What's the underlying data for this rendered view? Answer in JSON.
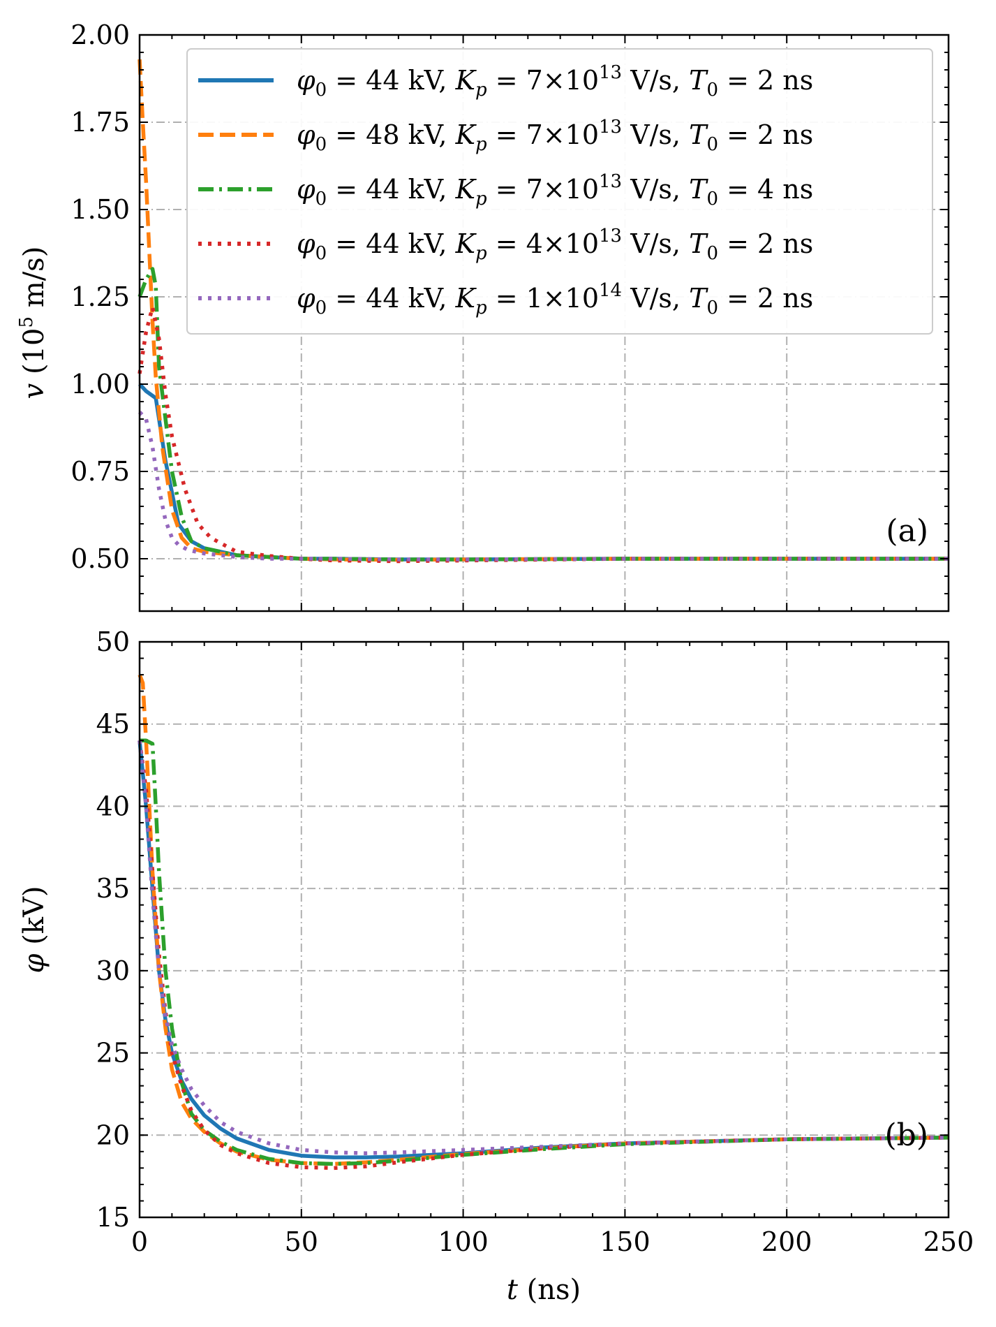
{
  "chart_data": [
    {
      "type": "line",
      "panel_label": "(a)",
      "ylabel_var": "v",
      "ylabel_unit_pre": "(10",
      "ylabel_unit_exp": "5",
      "ylabel_unit_post": " m/s)",
      "xlim": [
        0,
        250
      ],
      "ylim": [
        0.35,
        2.0
      ],
      "xticks": [
        0,
        50,
        100,
        150,
        200,
        250
      ],
      "xtick_labels": [
        "",
        "",
        "",
        "",
        "",
        ""
      ],
      "yticks": [
        0.5,
        0.75,
        1.0,
        1.25,
        1.5,
        1.75,
        2.0
      ],
      "ytick_labels": [
        "0.50",
        "0.75",
        "1.00",
        "1.25",
        "1.50",
        "1.75",
        "2.00"
      ],
      "grid": true,
      "legend": "top-right",
      "series": [
        {
          "name": "φ0 = 44 kV, Kp = 7×10^13 V/s, T0 = 2 ns",
          "x": [
            0,
            2,
            5,
            8,
            12,
            16,
            20,
            30,
            40,
            50,
            60,
            80,
            100,
            150,
            200,
            250
          ],
          "y": [
            1.0,
            0.98,
            0.96,
            0.78,
            0.6,
            0.55,
            0.53,
            0.51,
            0.505,
            0.5,
            0.5,
            0.498,
            0.498,
            0.5,
            0.5,
            0.5
          ]
        },
        {
          "name": "φ0 = 48 kV, Kp = 7×10^13 V/s, T0 = 2 ns",
          "x": [
            0,
            1,
            2,
            3,
            4,
            5,
            7,
            10,
            13,
            16,
            20,
            30,
            40,
            50,
            60,
            80,
            100,
            150,
            200,
            250
          ],
          "y": [
            1.93,
            1.75,
            1.58,
            1.38,
            1.18,
            1.02,
            0.82,
            0.64,
            0.56,
            0.53,
            0.52,
            0.51,
            0.505,
            0.5,
            0.498,
            0.497,
            0.498,
            0.5,
            0.5,
            0.5
          ]
        },
        {
          "name": "φ0 = 44 kV, Kp = 7×10^13 V/s, T0 = 4 ns",
          "x": [
            0,
            2,
            4,
            5,
            6,
            8,
            10,
            13,
            16,
            20,
            30,
            40,
            50,
            60,
            80,
            100,
            150,
            200,
            250
          ],
          "y": [
            1.25,
            1.3,
            1.33,
            1.28,
            1.05,
            0.9,
            0.75,
            0.62,
            0.55,
            0.53,
            0.51,
            0.505,
            0.5,
            0.5,
            0.498,
            0.498,
            0.5,
            0.5,
            0.5
          ]
        },
        {
          "name": "φ0 = 44 kV, Kp = 4×10^13 V/s, T0 = 2 ns",
          "x": [
            0,
            2,
            4,
            6,
            8,
            10,
            14,
            18,
            22,
            26,
            30,
            40,
            50,
            60,
            80,
            100,
            150,
            200,
            250
          ],
          "y": [
            1.03,
            1.15,
            1.22,
            1.13,
            0.97,
            0.85,
            0.7,
            0.6,
            0.56,
            0.54,
            0.52,
            0.508,
            0.5,
            0.495,
            0.493,
            0.495,
            0.5,
            0.5,
            0.5
          ]
        },
        {
          "name": "φ0 = 44 kV, Kp = 1×10^14 V/s, T0 = 2 ns",
          "x": [
            0,
            2,
            4,
            6,
            8,
            10,
            12,
            15,
            20,
            30,
            40,
            50,
            60,
            80,
            100,
            150,
            200,
            250
          ],
          "y": [
            0.92,
            0.9,
            0.82,
            0.7,
            0.61,
            0.56,
            0.54,
            0.525,
            0.515,
            0.505,
            0.5,
            0.5,
            0.5,
            0.498,
            0.498,
            0.5,
            0.5,
            0.5
          ]
        }
      ]
    },
    {
      "type": "line",
      "panel_label": "(b)",
      "ylabel_var": "φ",
      "ylabel_unit": "(kV)",
      "xlabel_var": "t",
      "xlabel_unit": "(ns)",
      "xlim": [
        0,
        250
      ],
      "ylim": [
        15,
        50
      ],
      "xticks": [
        0,
        50,
        100,
        150,
        200,
        250
      ],
      "xtick_labels": [
        "0",
        "50",
        "100",
        "150",
        "200",
        "250"
      ],
      "yticks": [
        15,
        20,
        25,
        30,
        35,
        40,
        45,
        50
      ],
      "ytick_labels": [
        "15",
        "20",
        "25",
        "30",
        "35",
        "40",
        "45",
        "50"
      ],
      "grid": true,
      "series": [
        {
          "name": "φ0 = 44 kV, Kp = 7×10^13 V/s, T0 = 2 ns",
          "x": [
            0,
            2,
            4,
            6,
            8,
            10,
            13,
            16,
            20,
            25,
            30,
            40,
            50,
            60,
            70,
            80,
            100,
            125,
            150,
            200,
            250
          ],
          "y": [
            44,
            40,
            35,
            30,
            27,
            25,
            23.3,
            22.2,
            21.2,
            20.4,
            19.8,
            19.1,
            18.75,
            18.65,
            18.65,
            18.7,
            18.9,
            19.25,
            19.5,
            19.75,
            19.85
          ]
        },
        {
          "name": "φ0 = 48 kV, Kp = 7×10^13 V/s, T0 = 2 ns",
          "x": [
            0,
            1,
            2,
            3,
            4,
            6,
            8,
            10,
            13,
            16,
            20,
            25,
            30,
            40,
            50,
            60,
            70,
            80,
            100,
            125,
            150,
            200,
            250
          ],
          "y": [
            48,
            47.5,
            44,
            40,
            36,
            30,
            26.5,
            24,
            22,
            21,
            20.2,
            19.5,
            19.0,
            18.5,
            18.3,
            18.25,
            18.35,
            18.5,
            18.85,
            19.2,
            19.5,
            19.75,
            19.85
          ]
        },
        {
          "name": "φ0 = 44 kV, Kp = 7×10^13 V/s, T0 = 4 ns",
          "x": [
            0,
            2,
            4,
            5,
            6,
            8,
            10,
            13,
            16,
            20,
            25,
            30,
            40,
            50,
            60,
            70,
            80,
            100,
            125,
            150,
            200,
            250
          ],
          "y": [
            44,
            44,
            43.8,
            40,
            36,
            30,
            26.5,
            23.2,
            21.3,
            20.3,
            19.6,
            19.1,
            18.55,
            18.3,
            18.25,
            18.3,
            18.45,
            18.8,
            19.15,
            19.45,
            19.75,
            19.85
          ]
        },
        {
          "name": "φ0 = 44 kV, Kp = 4×10^13 V/s, T0 = 2 ns",
          "x": [
            0,
            2,
            4,
            6,
            8,
            10,
            13,
            16,
            20,
            25,
            30,
            40,
            50,
            60,
            70,
            80,
            100,
            125,
            150,
            200,
            250
          ],
          "y": [
            44,
            41,
            36,
            31,
            27.5,
            25,
            23,
            21.5,
            20.3,
            19.4,
            18.9,
            18.3,
            18.05,
            18.0,
            18.1,
            18.35,
            18.8,
            19.2,
            19.5,
            19.75,
            19.85
          ]
        },
        {
          "name": "φ0 = 44 kV, Kp = 1×10^14 V/s, T0 = 2 ns",
          "x": [
            0,
            2,
            4,
            6,
            8,
            10,
            13,
            16,
            20,
            25,
            30,
            40,
            50,
            60,
            70,
            80,
            100,
            125,
            150,
            200,
            250
          ],
          "y": [
            44,
            40,
            34.5,
            30,
            27.2,
            25.5,
            24,
            22.8,
            21.8,
            20.8,
            20.2,
            19.5,
            19.1,
            18.95,
            18.9,
            18.95,
            19.1,
            19.3,
            19.5,
            19.75,
            19.85
          ]
        }
      ]
    }
  ],
  "legend": {
    "entries": [
      {
        "phi": "44",
        "k_mant": "7",
        "k_exp": "13",
        "t0": "2",
        "color": "#1f77b4",
        "style": "solid"
      },
      {
        "phi": "48",
        "k_mant": "7",
        "k_exp": "13",
        "t0": "2",
        "color": "#ff7f0e",
        "style": "dashed"
      },
      {
        "phi": "44",
        "k_mant": "7",
        "k_exp": "13",
        "t0": "4",
        "color": "#2ca02c",
        "style": "dashdot"
      },
      {
        "phi": "44",
        "k_mant": "4",
        "k_exp": "13",
        "t0": "2",
        "color": "#d62728",
        "style": "dotted"
      },
      {
        "phi": "44",
        "k_mant": "1",
        "k_exp": "14",
        "t0": "2",
        "color": "#9467bd",
        "style": "dotted"
      }
    ]
  }
}
